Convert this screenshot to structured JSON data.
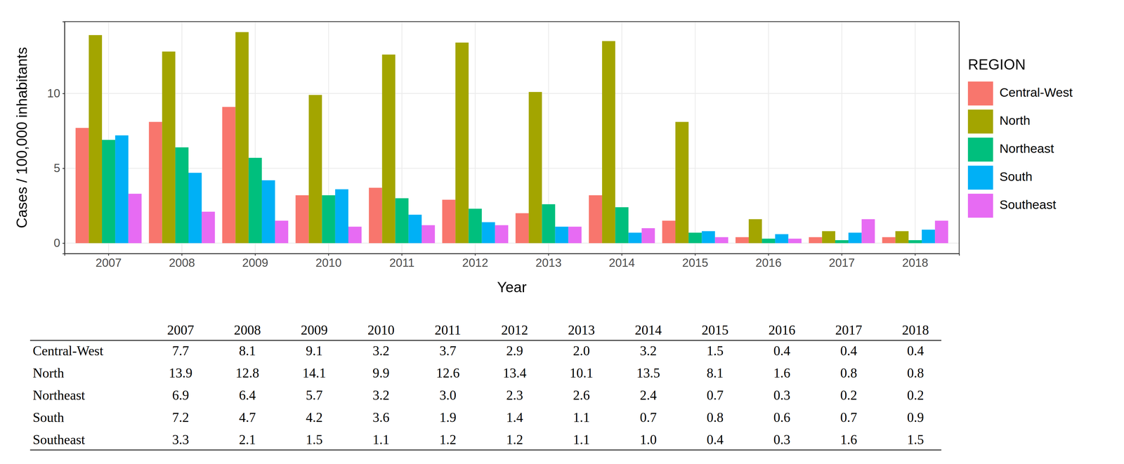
{
  "chart_data": {
    "type": "bar",
    "x_label": "Year",
    "y_label": "Cases / 100,000 inhabitants",
    "legend_title": "REGION",
    "categories": [
      "2007",
      "2008",
      "2009",
      "2010",
      "2011",
      "2012",
      "2013",
      "2014",
      "2015",
      "2016",
      "2017",
      "2018"
    ],
    "series": [
      {
        "name": "Central-West",
        "color": "#F8766D",
        "values": [
          7.7,
          8.1,
          9.1,
          3.2,
          3.7,
          2.9,
          2.0,
          3.2,
          1.5,
          0.4,
          0.4,
          0.4
        ],
        "value_labels": [
          "7.7",
          "8.1",
          "9.1",
          "3.2",
          "3.7",
          "2.9",
          "2.0",
          "3.2",
          "1.5",
          "0.4",
          "0.4",
          "0.4"
        ]
      },
      {
        "name": "North",
        "color": "#A3A500",
        "values": [
          13.9,
          12.8,
          14.1,
          9.9,
          12.6,
          13.4,
          10.1,
          13.5,
          8.1,
          1.6,
          0.8,
          0.8
        ],
        "value_labels": [
          "13.9",
          "12.8",
          "14.1",
          "9.9",
          "12.6",
          "13.4",
          "10.1",
          "13.5",
          "8.1",
          "1.6",
          "0.8",
          "0.8"
        ]
      },
      {
        "name": "Northeast",
        "color": "#00BF7D",
        "values": [
          6.9,
          6.4,
          5.7,
          3.2,
          3.0,
          2.3,
          2.6,
          2.4,
          0.7,
          0.3,
          0.2,
          0.2
        ],
        "value_labels": [
          "6.9",
          "6.4",
          "5.7",
          "3.2",
          "3.0",
          "2.3",
          "2.6",
          "2.4",
          "0.7",
          "0.3",
          "0.2",
          "0.2"
        ]
      },
      {
        "name": "South",
        "color": "#00B0F6",
        "values": [
          7.2,
          4.7,
          4.2,
          3.6,
          1.9,
          1.4,
          1.1,
          0.7,
          0.8,
          0.6,
          0.7,
          0.9
        ],
        "value_labels": [
          "7.2",
          "4.7",
          "4.2",
          "3.6",
          "1.9",
          "1.4",
          "1.1",
          "0.7",
          "0.8",
          "0.6",
          "0.7",
          "0.9"
        ]
      },
      {
        "name": "Southeast",
        "color": "#E76BF3",
        "values": [
          3.3,
          2.1,
          1.5,
          1.1,
          1.2,
          1.2,
          1.1,
          1.0,
          0.4,
          0.3,
          1.6,
          1.5
        ],
        "value_labels": [
          "3.3",
          "2.1",
          "1.5",
          "1.1",
          "1.2",
          "1.2",
          "1.1",
          "1.0",
          "0.4",
          "0.3",
          "1.6",
          "1.5"
        ]
      }
    ],
    "ylim": [
      -0.7,
      14.8
    ],
    "yticks": [
      0,
      5,
      10
    ],
    "grid": true,
    "legend": "right"
  }
}
